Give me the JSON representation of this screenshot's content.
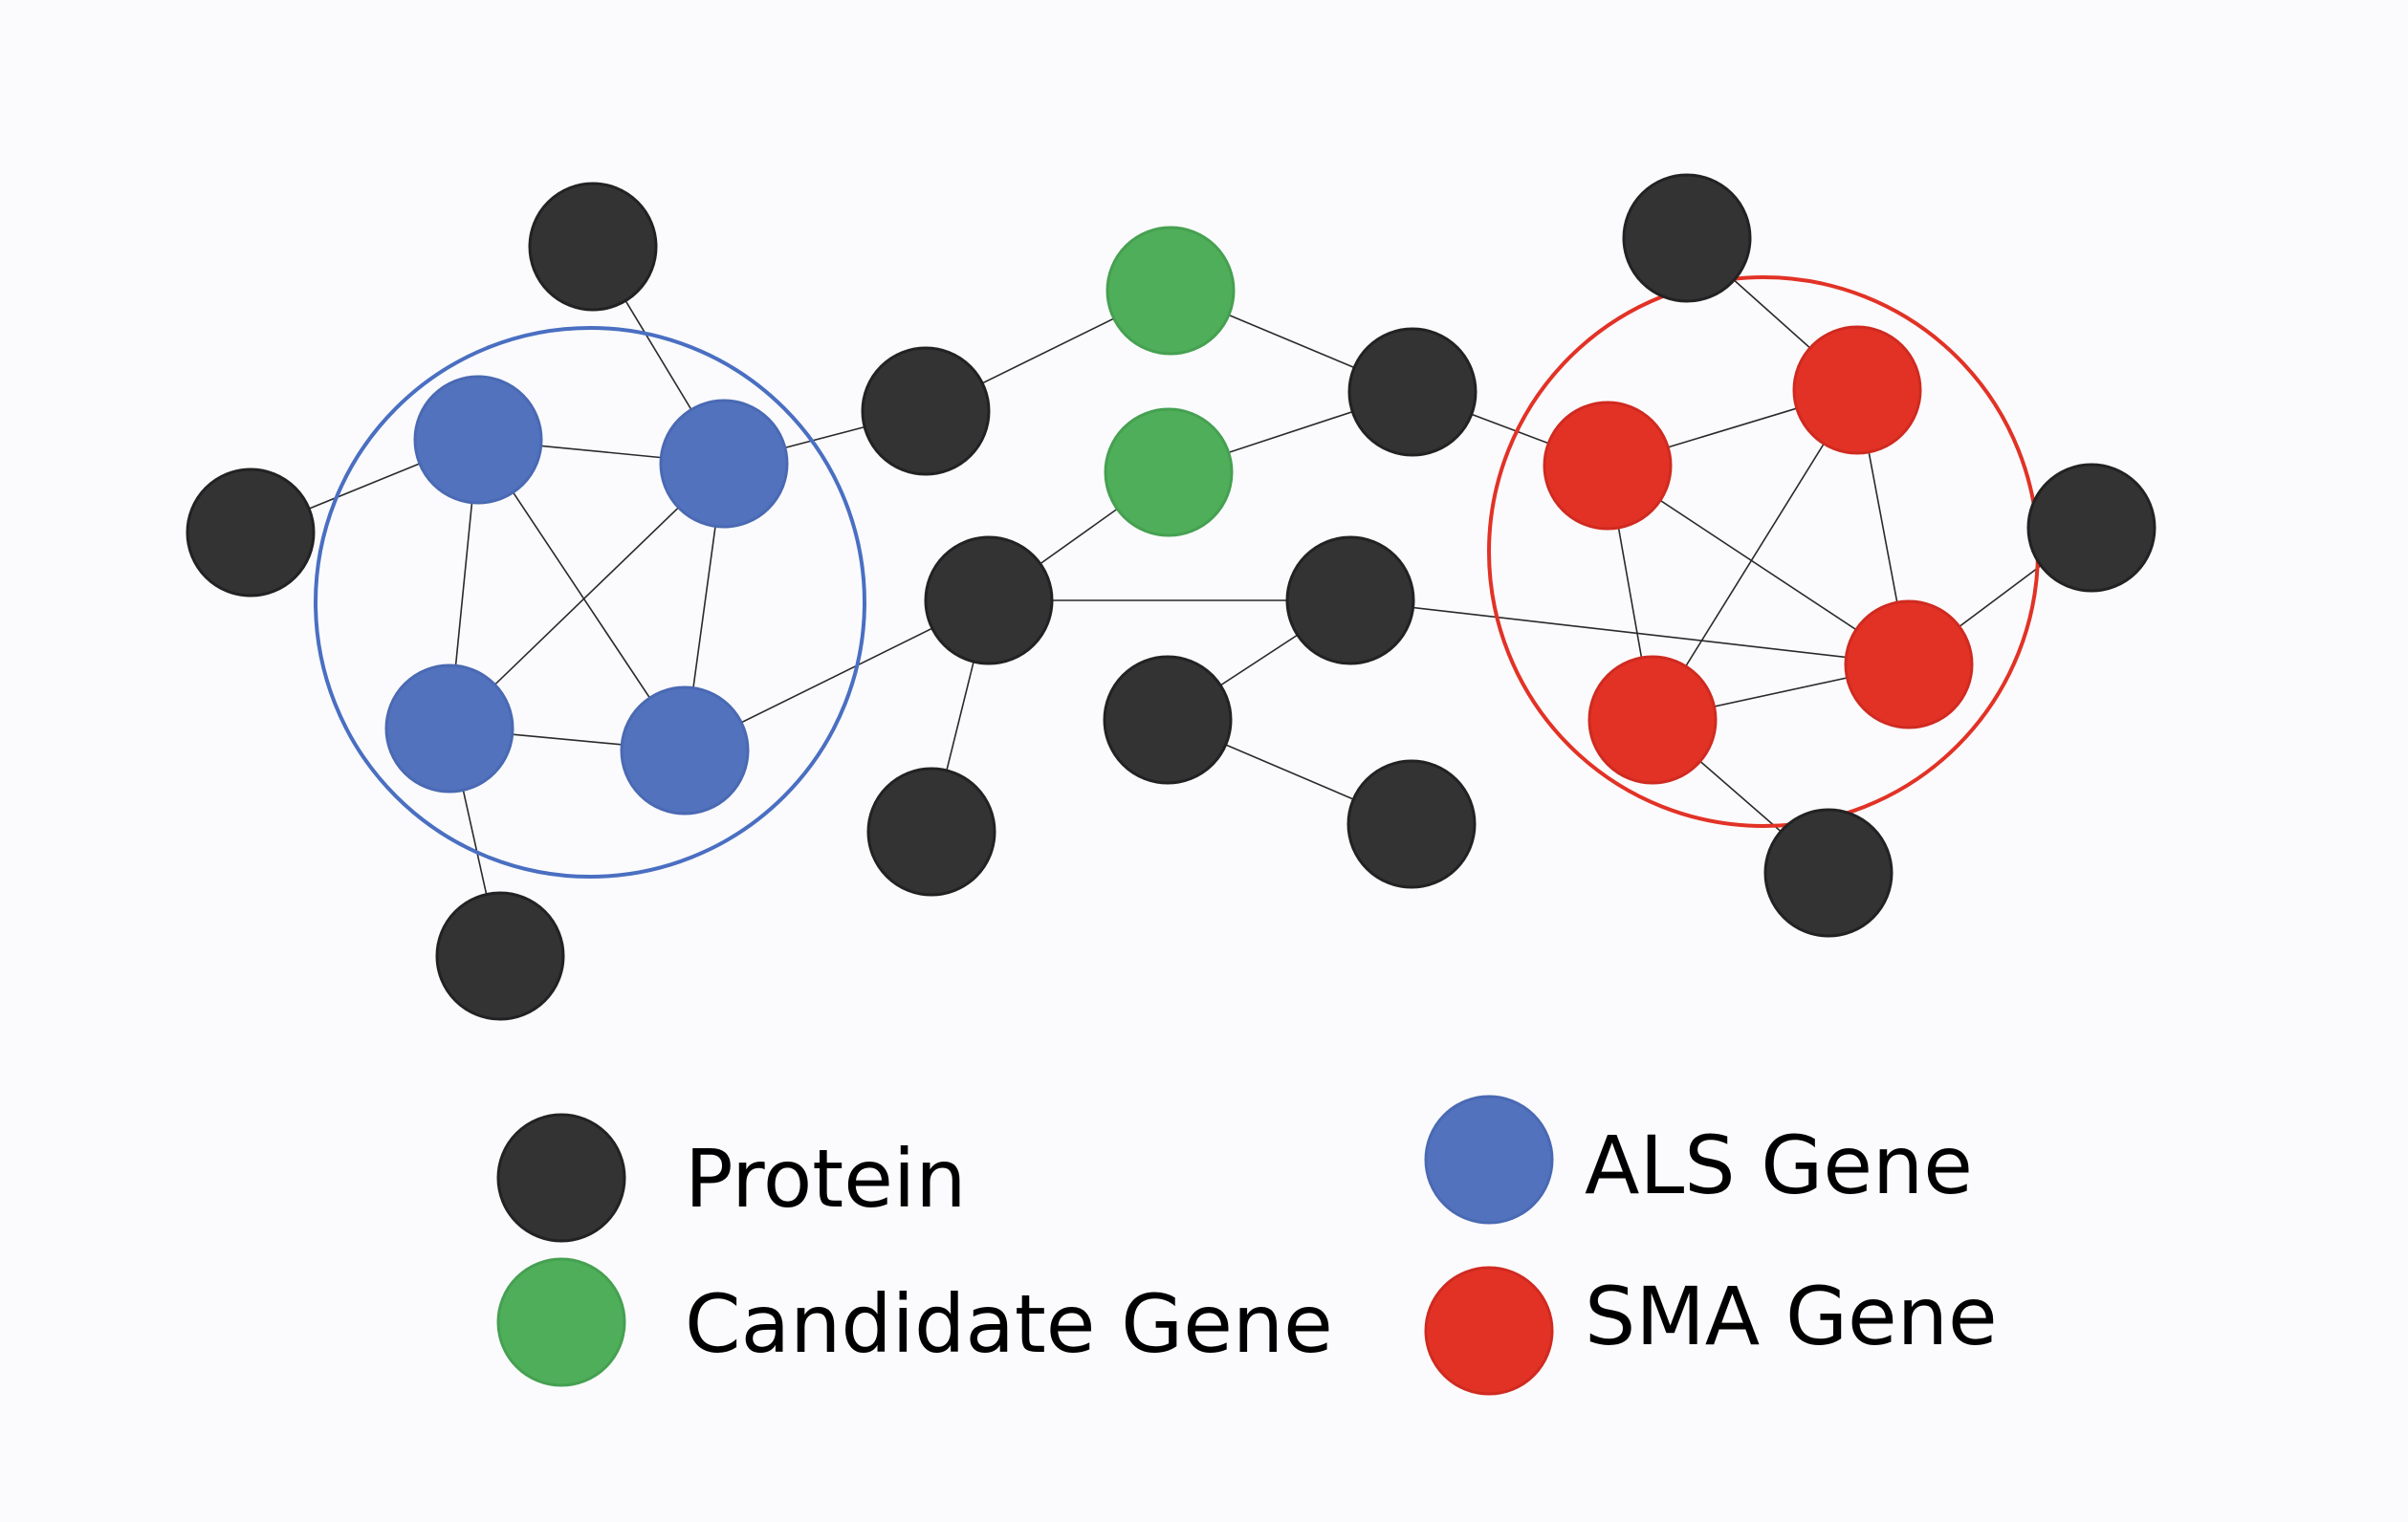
{
  "colors": {
    "protein": "#333333",
    "candidate": "#4fae5a",
    "als": "#5272be",
    "sma": "#e23226",
    "als_cluster": "#4a6fc2",
    "sma_cluster": "#e23226"
  },
  "legend": [
    {
      "type": "protein",
      "label": "Protein"
    },
    {
      "type": "candidate",
      "label": "Candidate Gene"
    },
    {
      "type": "als",
      "label": "ALS Gene"
    },
    {
      "type": "sma",
      "label": "SMA Gene"
    }
  ],
  "graph": {
    "nodes": [
      {
        "id": "p1",
        "type": "protein"
      },
      {
        "id": "p2",
        "type": "protein"
      },
      {
        "id": "p3",
        "type": "protein"
      },
      {
        "id": "p4",
        "type": "protein"
      },
      {
        "id": "p5",
        "type": "protein"
      },
      {
        "id": "p6",
        "type": "protein"
      },
      {
        "id": "p7",
        "type": "protein"
      },
      {
        "id": "p8",
        "type": "protein"
      },
      {
        "id": "p9",
        "type": "protein"
      },
      {
        "id": "p10",
        "type": "protein"
      },
      {
        "id": "p11",
        "type": "protein"
      },
      {
        "id": "p12",
        "type": "protein"
      },
      {
        "id": "p13",
        "type": "protein"
      },
      {
        "id": "g1",
        "type": "candidate"
      },
      {
        "id": "g2",
        "type": "candidate"
      },
      {
        "id": "a1",
        "type": "als"
      },
      {
        "id": "a2",
        "type": "als"
      },
      {
        "id": "a3",
        "type": "als"
      },
      {
        "id": "a4",
        "type": "als"
      },
      {
        "id": "s1",
        "type": "sma"
      },
      {
        "id": "s2",
        "type": "sma"
      },
      {
        "id": "s3",
        "type": "sma"
      },
      {
        "id": "s4",
        "type": "sma"
      }
    ],
    "edges": [
      [
        "p1",
        "a1"
      ],
      [
        "p2",
        "a2"
      ],
      [
        "a1",
        "a2"
      ],
      [
        "a1",
        "a3"
      ],
      [
        "a1",
        "a4"
      ],
      [
        "a2",
        "a3"
      ],
      [
        "a2",
        "a4"
      ],
      [
        "a3",
        "a4"
      ],
      [
        "a3",
        "p4"
      ],
      [
        "a2",
        "p5"
      ],
      [
        "a4",
        "p7"
      ],
      [
        "p5",
        "g1"
      ],
      [
        "g1",
        "p6"
      ],
      [
        "p6",
        "g2"
      ],
      [
        "g2",
        "p7"
      ],
      [
        "p7",
        "p9"
      ],
      [
        "p7",
        "p8"
      ],
      [
        "p9",
        "p10"
      ],
      [
        "p10",
        "p11"
      ],
      [
        "p9",
        "s4"
      ],
      [
        "p6",
        "s1"
      ],
      [
        "p12",
        "s2"
      ],
      [
        "s1",
        "s2"
      ],
      [
        "s1",
        "s3"
      ],
      [
        "s1",
        "s4"
      ],
      [
        "s2",
        "s3"
      ],
      [
        "s2",
        "s4"
      ],
      [
        "s3",
        "s4"
      ],
      [
        "s3",
        "p13"
      ],
      [
        "s4",
        "p3"
      ]
    ]
  }
}
